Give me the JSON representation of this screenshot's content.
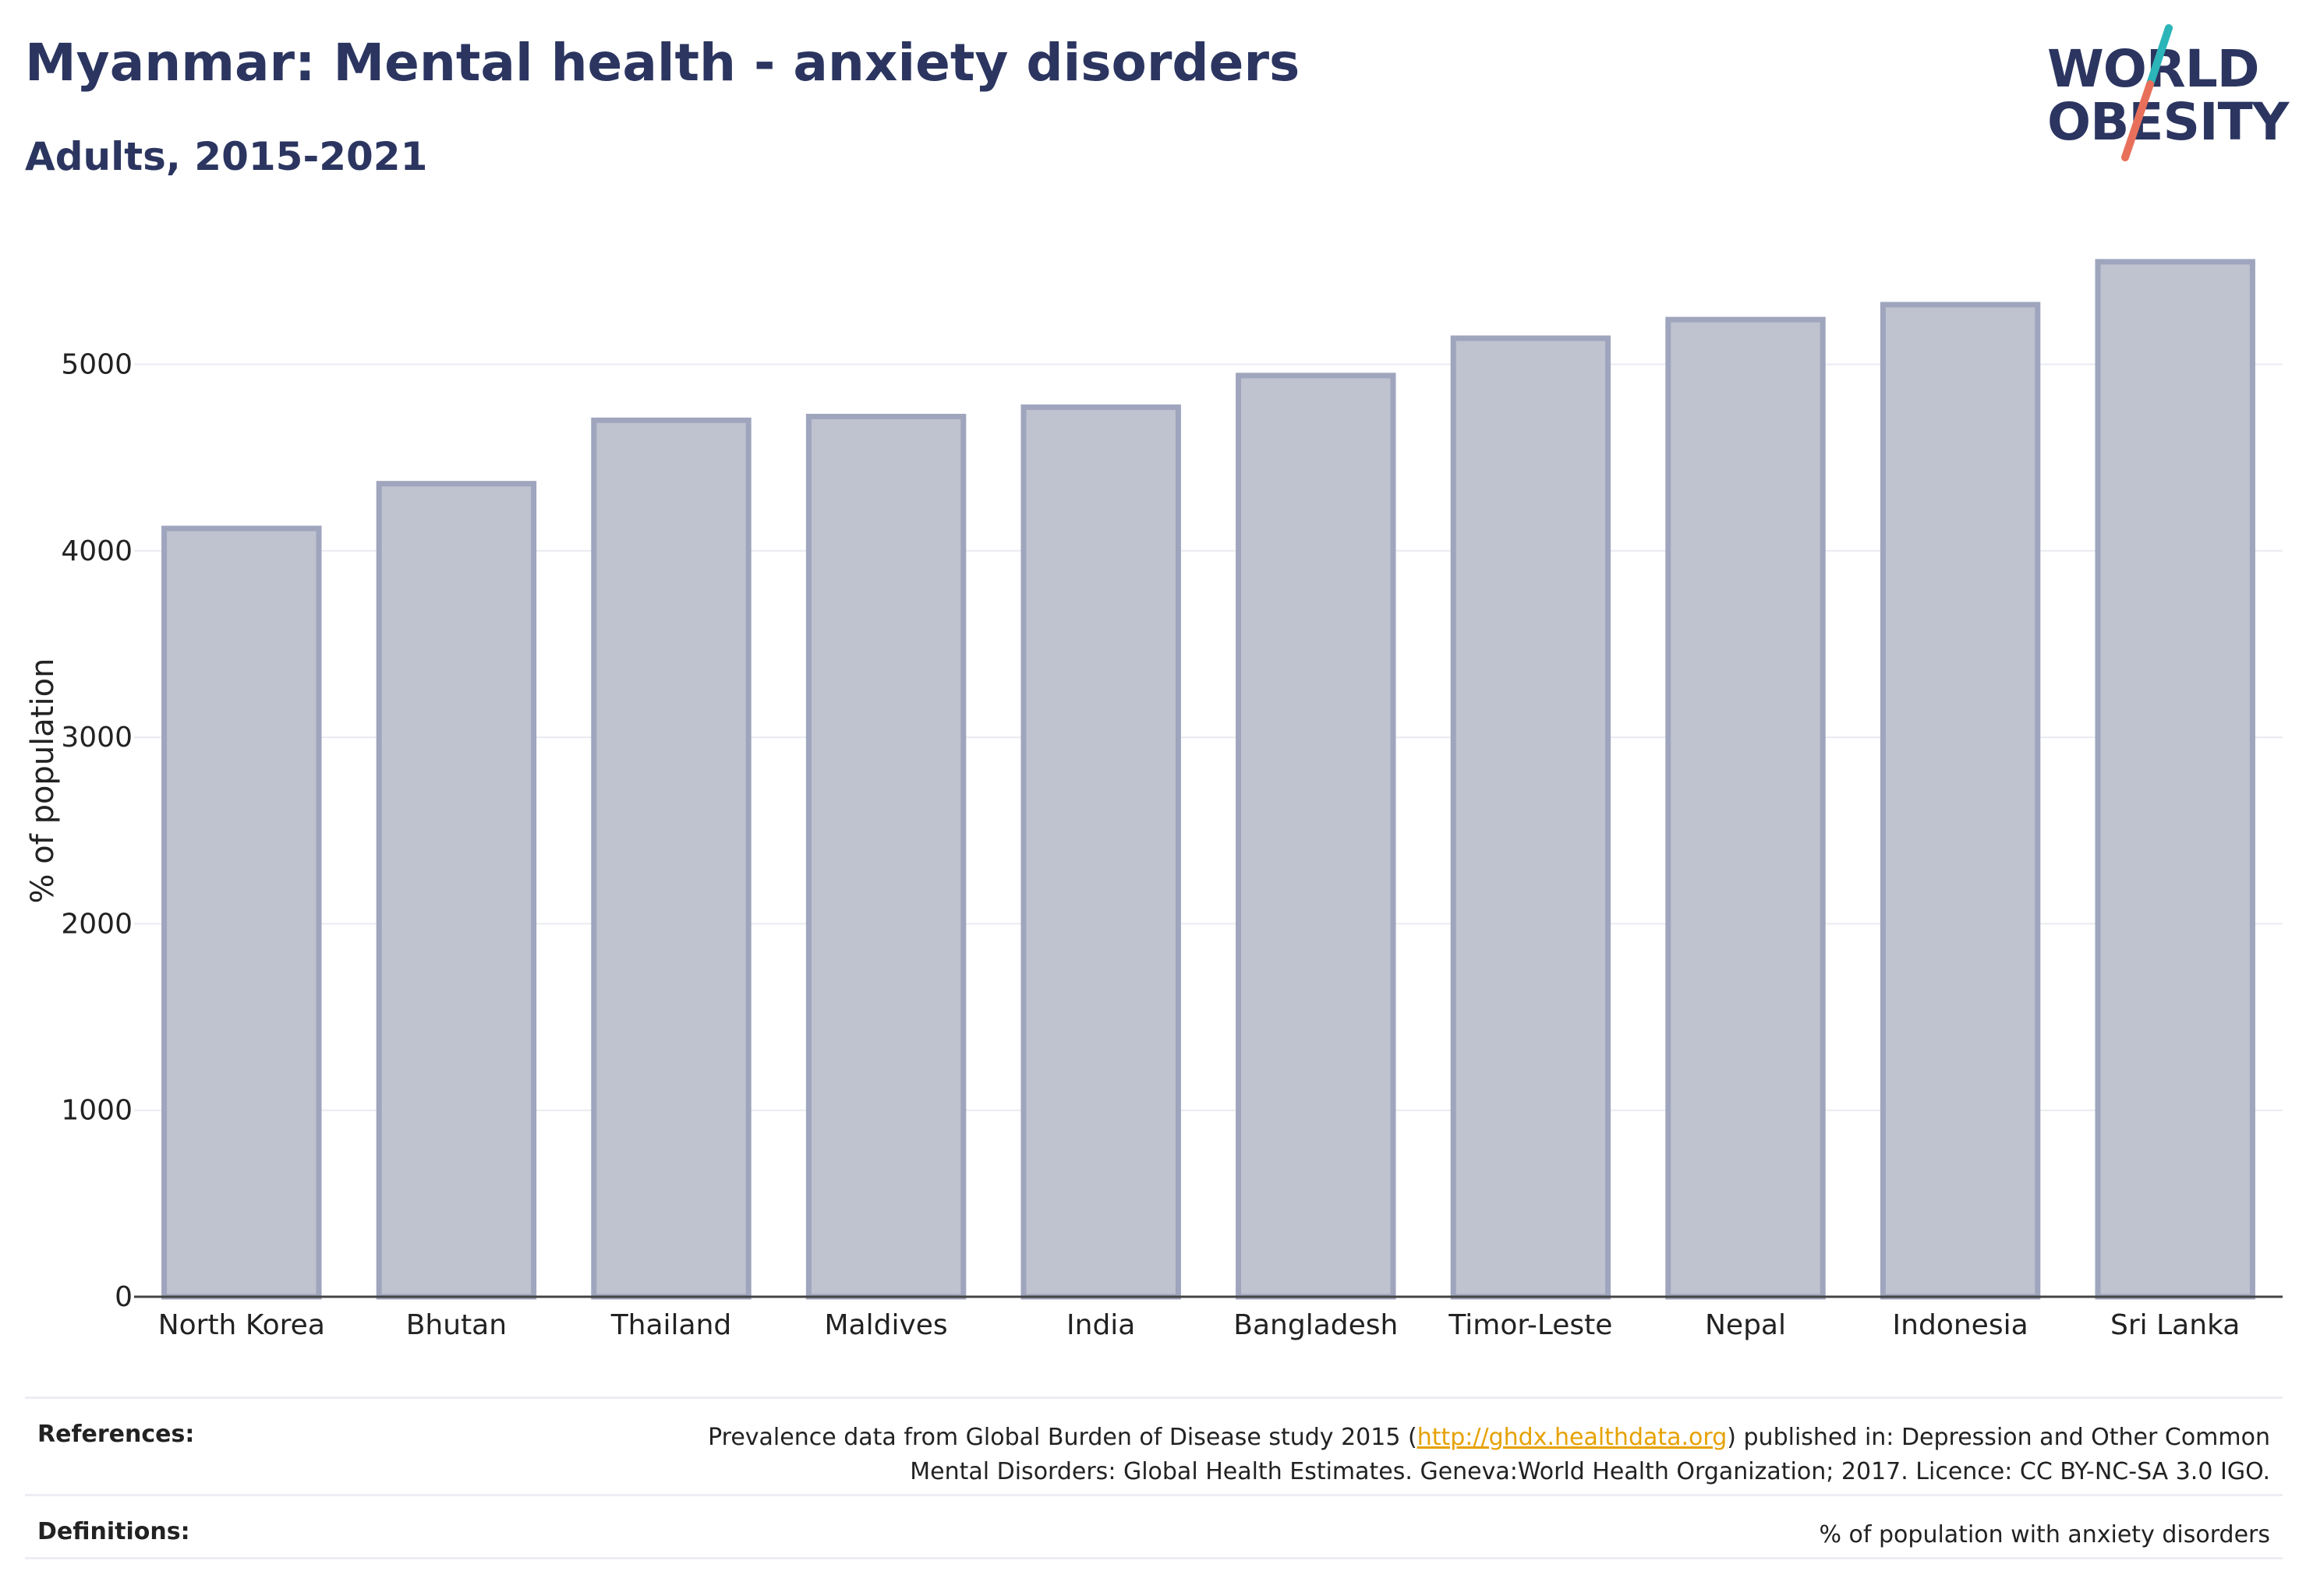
{
  "header": {
    "title": "Myanmar: Mental health - anxiety disorders",
    "subtitle": "Adults, 2015-2021"
  },
  "logo": {
    "line1": "WORLD",
    "line2": "OBESITY",
    "accent_teal": "#2bb5b8",
    "accent_coral": "#e8705a"
  },
  "chart_data": {
    "type": "bar",
    "categories": [
      "North Korea",
      "Bhutan",
      "Thailand",
      "Maldives",
      "India",
      "Bangladesh",
      "Timor-Leste",
      "Nepal",
      "Indonesia",
      "Sri Lanka"
    ],
    "values": [
      4120,
      4360,
      4700,
      4720,
      4770,
      4940,
      5140,
      5240,
      5320,
      5550
    ],
    "ylabel": "% of population",
    "xlabel": "",
    "ylim": [
      0,
      5700
    ],
    "yticks": [
      0,
      1000,
      2000,
      3000,
      4000,
      5000
    ],
    "grid": true,
    "bar_fill": "#bfc2cf",
    "bar_stroke": "#9fa5bd"
  },
  "footer": {
    "references_label": "References:",
    "references_pre": "Prevalence data from Global Burden of Disease study 2015 (",
    "references_link": "http://ghdx.healthdata.org",
    "references_mid": ") published in: Depression and Other Common",
    "references_line2": "Mental Disorders: Global Health Estimates. Geneva:World Health Organization; 2017. Licence: CC BY-NC-SA 3.0 IGO.",
    "definitions_label": "Definitions:",
    "definitions_text": "% of population with anxiety disorders"
  }
}
